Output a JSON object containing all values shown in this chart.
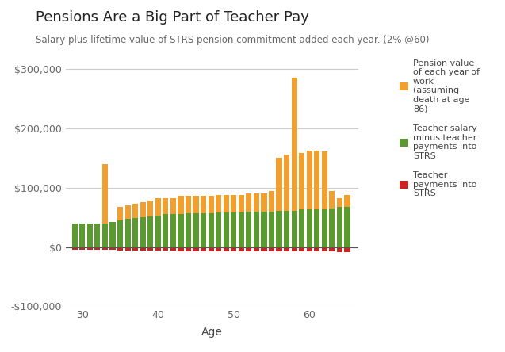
{
  "title": "Pensions Are a Big Part of Teacher Pay",
  "subtitle": "Salary plus lifetime value of STRS pension commitment added each year. (2% @60)",
  "xlabel": "Age",
  "ages": [
    29,
    30,
    31,
    32,
    33,
    34,
    35,
    36,
    37,
    38,
    39,
    40,
    41,
    42,
    43,
    44,
    45,
    46,
    47,
    48,
    49,
    50,
    51,
    52,
    53,
    54,
    55,
    56,
    57,
    58,
    59,
    60,
    61,
    62,
    63,
    64,
    65
  ],
  "pension_values": [
    0,
    0,
    0,
    0,
    100000,
    0,
    22000,
    23000,
    24000,
    26000,
    27000,
    30000,
    28000,
    28000,
    30000,
    30000,
    30000,
    30000,
    30000,
    30000,
    30000,
    30000,
    30000,
    32000,
    32000,
    32000,
    35000,
    90000,
    95000,
    225000,
    95000,
    100000,
    100000,
    98000,
    30000,
    15000,
    20000
  ],
  "salary_values": [
    40000,
    40000,
    40000,
    40000,
    40000,
    42000,
    45000,
    47000,
    49000,
    50000,
    52000,
    53000,
    55000,
    55000,
    56000,
    57000,
    57000,
    57000,
    57000,
    58000,
    58000,
    58000,
    58000,
    59000,
    59000,
    59000,
    60000,
    61000,
    61000,
    61000,
    63000,
    63000,
    63000,
    63000,
    65000,
    67000,
    68000
  ],
  "teacher_payments": [
    -4800,
    -4800,
    -4800,
    -4800,
    -4800,
    -5000,
    -5400,
    -5600,
    -5900,
    -6000,
    -6200,
    -6400,
    -6600,
    -6600,
    -6700,
    -6800,
    -6800,
    -6800,
    -6800,
    -7000,
    -7000,
    -7000,
    -7000,
    -7100,
    -7100,
    -7100,
    -7200,
    -7300,
    -7300,
    -7300,
    -7600,
    -7600,
    -7600,
    -7600,
    -7800,
    -8000,
    -8200
  ],
  "pension_color": "#f0a030",
  "salary_color": "#5a9a30",
  "payment_color": "#cc2222",
  "background_color": "#ffffff",
  "grid_color": "#cccccc",
  "ylim": [
    -100000,
    310000
  ],
  "yticks": [
    -100000,
    0,
    100000,
    200000,
    300000
  ]
}
